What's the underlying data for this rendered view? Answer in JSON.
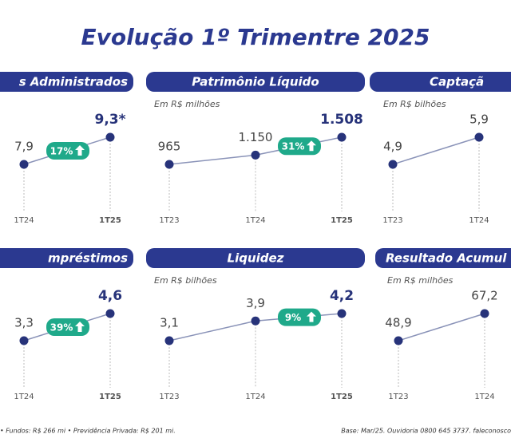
{
  "title": "Evolução 1º Trimentre 2025",
  "chart_data": [
    {
      "type": "line",
      "title": "s Administrados",
      "categories": [
        "1T24",
        "1T25"
      ],
      "values": [
        7.9,
        9.3
      ],
      "value_labels": [
        "7,9",
        "9,3*"
      ],
      "change_label": "17%",
      "color": "#27337a"
    },
    {
      "type": "line",
      "title": "Patrimônio Líquido",
      "subtitle": "Em R$ milhões",
      "categories": [
        "1T23",
        "1T24",
        "1T25"
      ],
      "values": [
        965,
        1150,
        1508
      ],
      "value_labels": [
        "965",
        "1.150",
        "1.508"
      ],
      "change_label": "31%",
      "color": "#27337a"
    },
    {
      "type": "line",
      "title": "Captaçã",
      "subtitle": "Em R$ bilhões",
      "categories": [
        "1T23",
        "1T24"
      ],
      "values": [
        4.9,
        5.9
      ],
      "value_labels": [
        "4,9",
        "5,9"
      ],
      "color": "#27337a"
    },
    {
      "type": "line",
      "title": "mpréstimos",
      "categories": [
        "1T24",
        "1T25"
      ],
      "values": [
        3.3,
        4.6
      ],
      "value_labels": [
        "3,3",
        "4,6"
      ],
      "change_label": "39%",
      "color": "#27337a"
    },
    {
      "type": "line",
      "title": "Liquidez",
      "subtitle": "Em R$ bilhões",
      "categories": [
        "1T23",
        "1T24",
        "1T25"
      ],
      "values": [
        3.1,
        3.9,
        4.2
      ],
      "value_labels": [
        "3,1",
        "3,9",
        "4,2"
      ],
      "change_label": "9%",
      "color": "#27337a"
    },
    {
      "type": "line",
      "title": "Resultado Acumul",
      "subtitle": "Em R$ milhões",
      "categories": [
        "1T23",
        "1T24"
      ],
      "values": [
        48.9,
        67.2
      ],
      "value_labels": [
        "48,9",
        "67,2"
      ],
      "color": "#27337a"
    }
  ],
  "footnotes": [
    "• Fundos: R$ 266 mi • Previdência Privada: R$ 201 mi.",
    "Base: Mar/25. Ouvidoria 0800 645 3737. faleconosco"
  ]
}
